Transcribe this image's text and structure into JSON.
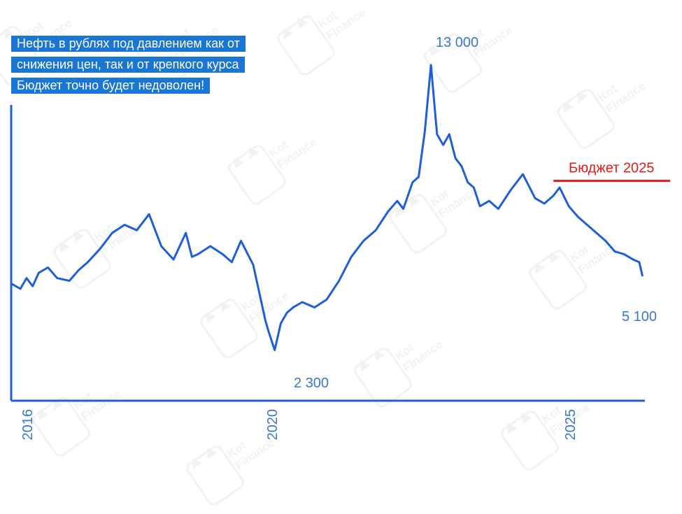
{
  "title_lines": [
    "Нефть в рублях под давлением как от",
    "снижения цен, так и от крепкого курса",
    "Бюджет точно будет недоволен!"
  ],
  "watermark": {
    "line1": "Kot",
    "line2": "Finance"
  },
  "colors": {
    "line": "#1f5fd6",
    "label": "#3a78c6",
    "title_bg": "#1976d2",
    "budget": "#e01b1b",
    "axis": "#1f5fd6"
  },
  "chart_data": {
    "type": "line",
    "title": "",
    "xlabel": "",
    "ylabel": "",
    "x_ticks": [
      "2016",
      "2020",
      "2025"
    ],
    "ylim": [
      2000,
      14000
    ],
    "grid": false,
    "y_axis_tick_labels": false,
    "series": [
      {
        "x": [
          2015.85,
          2016.0,
          2016.1,
          2016.2,
          2016.3,
          2016.45,
          2016.6,
          2016.8,
          2016.95,
          2017.1,
          2017.3,
          2017.5,
          2017.7,
          2017.9,
          2018.1,
          2018.3,
          2018.5,
          2018.7,
          2018.8,
          2018.9,
          2019.1,
          2019.3,
          2019.45,
          2019.6,
          2019.8,
          2020.0,
          2020.05,
          2020.15,
          2020.25,
          2020.35,
          2020.45,
          2020.6,
          2020.8,
          2021.0,
          2021.2,
          2021.4,
          2021.6,
          2021.8,
          2022.0,
          2022.15,
          2022.25,
          2022.4,
          2022.5,
          2022.6,
          2022.7,
          2022.8,
          2022.9,
          2023.0,
          2023.1,
          2023.2,
          2023.3,
          2023.4,
          2023.5,
          2023.65,
          2023.8,
          2024.0,
          2024.2,
          2024.4,
          2024.55,
          2024.7,
          2024.8,
          2024.95,
          2025.1,
          2025.25,
          2025.4,
          2025.55,
          2025.7,
          2025.85,
          2026.0,
          2026.1,
          2026.15
        ],
        "values": [
          4800,
          4600,
          5000,
          4700,
          5200,
          5400,
          5000,
          4900,
          5300,
          5600,
          6100,
          6700,
          7000,
          6800,
          7400,
          6200,
          5700,
          6700,
          5800,
          5900,
          6200,
          5900,
          5600,
          6400,
          5500,
          3400,
          3000,
          2300,
          3300,
          3700,
          3900,
          4100,
          3900,
          4200,
          4900,
          5800,
          6400,
          6800,
          7500,
          7900,
          7600,
          8600,
          8800,
          10500,
          13000,
          10400,
          10000,
          10400,
          9500,
          9200,
          8600,
          8400,
          7700,
          7900,
          7600,
          8300,
          8900,
          8000,
          7800,
          8100,
          8400,
          7700,
          7300,
          7000,
          6700,
          6400,
          6000,
          5900,
          5700,
          5600,
          5100
        ]
      }
    ],
    "annotations": [
      {
        "text": "13 000",
        "x": 2022.7,
        "y": 13000
      },
      {
        "text": "2 300",
        "x": 2020.15,
        "y": 2300
      },
      {
        "text": "5 100",
        "x": 2026.15,
        "y": 5100
      }
    ],
    "budget_line": {
      "label": "Бюджет 2025",
      "value": 8650,
      "x_start": 2024.7
    }
  }
}
